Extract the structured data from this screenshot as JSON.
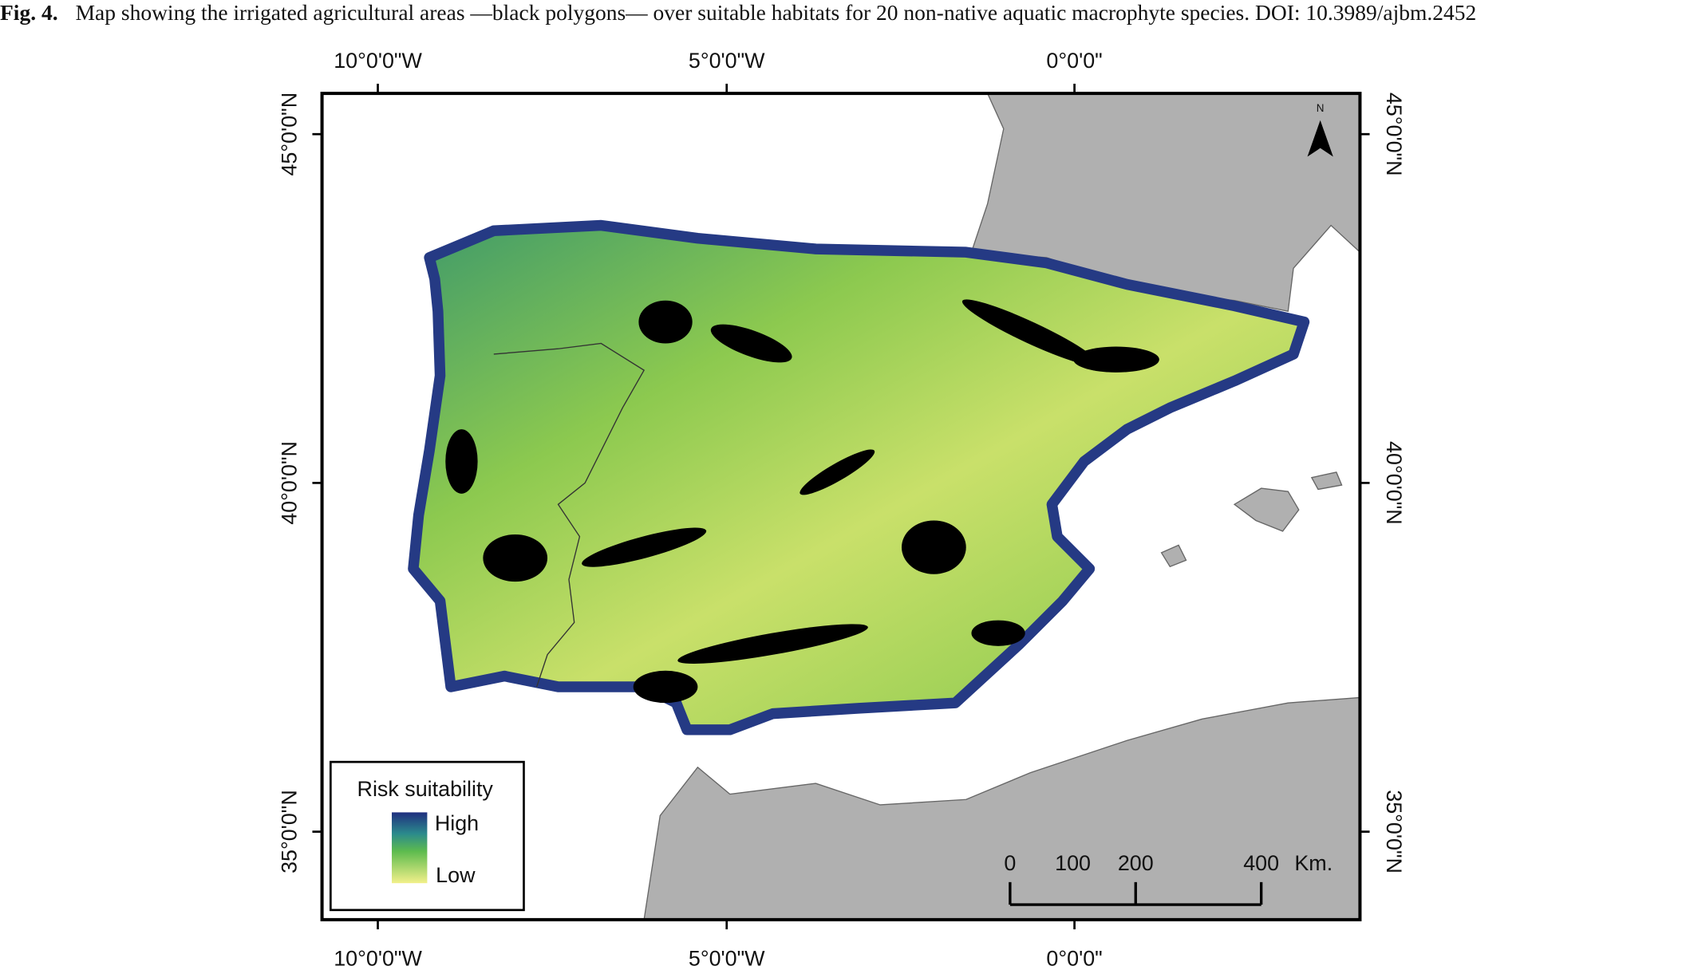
{
  "caption": {
    "label": "Fig. 4.",
    "text": "Map showing the irrigated agricultural areas —black polygons— over suitable habitats for 20 non-native aquatic macrophyte species. DOI: 10.3989/ajbm.2452"
  },
  "map": {
    "north": "N",
    "longitude_labels": [
      "10°0'0\"W",
      "5°0'0\"W",
      "0°0'0\""
    ],
    "latitude_labels": [
      "45°0'0\"N",
      "40°0'0\"N",
      "35°0'0\"N"
    ]
  },
  "legend": {
    "title": "Risk suitability",
    "high": "High",
    "low": "Low"
  },
  "scale_bar": {
    "ticks": [
      0,
      100,
      200,
      400
    ],
    "unit": "Km."
  }
}
